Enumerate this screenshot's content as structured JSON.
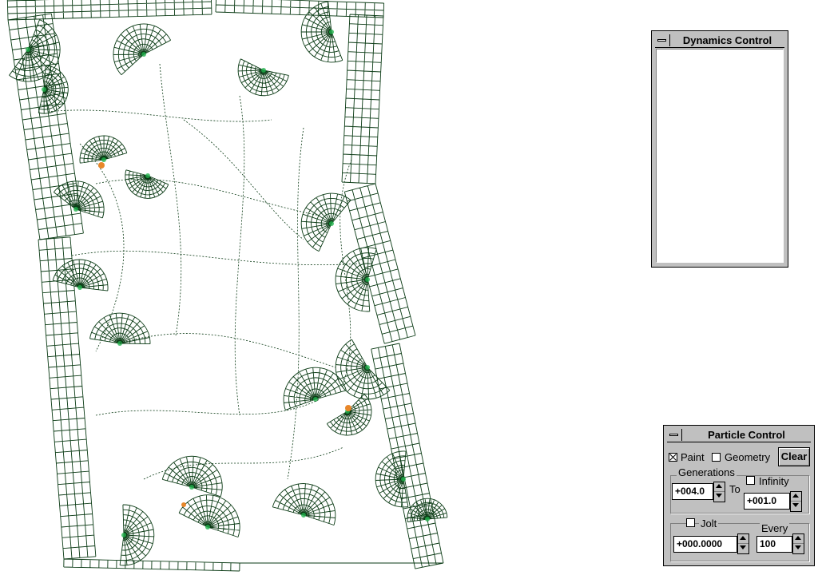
{
  "dynamics_window": {
    "title": "Dynamics Control"
  },
  "particle_window": {
    "title": "Particle Control",
    "paint": {
      "label": "Paint",
      "checked": true
    },
    "geometry": {
      "label": "Geometry",
      "checked": false
    },
    "clear_label": "Clear",
    "generations_label": "Generations",
    "generations_from": "+004.0",
    "to_label": "To",
    "infinity": {
      "label": "Infinity",
      "checked": false
    },
    "generations_to": "+001.0",
    "jolt": {
      "label": "Jolt",
      "checked": false
    },
    "jolt_value": "+000.0000",
    "every_label": "Every",
    "every_value": "100"
  },
  "canvas": {
    "grid_color": "#0a3a14",
    "accent_color": "#22b14c",
    "highlight_color": "#e8872a",
    "background": "#ffffff"
  }
}
